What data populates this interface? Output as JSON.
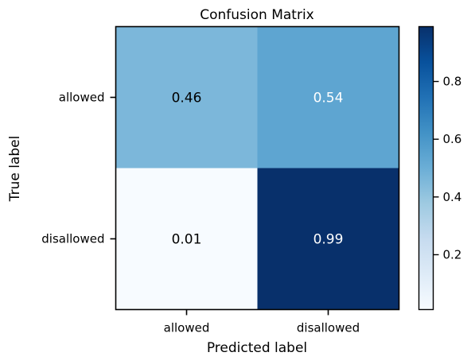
{
  "chart_data": {
    "type": "heatmap",
    "title": "Confusion Matrix",
    "xlabel": "Predicted label",
    "ylabel": "True label",
    "x_categories": [
      "allowed",
      "disallowed"
    ],
    "y_categories": [
      "allowed",
      "disallowed"
    ],
    "values": [
      [
        0.46,
        0.54
      ],
      [
        0.01,
        0.99
      ]
    ],
    "colormap": "Blues",
    "colorbar": {
      "ticks": [
        "0.2",
        "0.4",
        "0.6",
        "0.8"
      ],
      "min": 0.01,
      "max": 0.99
    },
    "grid": false
  }
}
